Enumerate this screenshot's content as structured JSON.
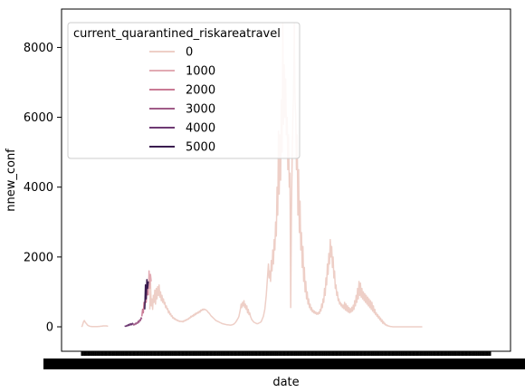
{
  "chart_data": {
    "type": "line",
    "xlabel": "date",
    "ylabel": "nnew_conf",
    "ylim": [
      -700,
      9100
    ],
    "y_ticks": [
      0,
      2000,
      4000,
      6000,
      8000
    ],
    "x_tick_labels_illegible": true,
    "x_count": 570,
    "grid": false,
    "legend": {
      "title": "current_quarantined_riskareatravel",
      "placement": "top-left",
      "entries": [
        "0",
        "1000",
        "2000",
        "3000",
        "4000",
        "5000"
      ]
    },
    "series_colors": {
      "0": "#eecfc7",
      "1000": "#e2aab3",
      "2000": "#c97a95",
      "3000": "#a05c88",
      "4000": "#6e3a73",
      "5000": "#3a1c4f"
    },
    "series": [
      {
        "name": "0",
        "segments": [
          {
            "x_start": 0,
            "values": [
              0,
              20,
              90,
              150,
              180,
              140,
              110,
              90,
              60,
              40,
              30,
              20,
              15,
              10,
              10,
              5,
              5,
              5,
              5,
              5,
              5,
              5,
              5,
              10,
              10,
              10,
              15,
              15,
              20,
              20,
              25,
              25,
              25,
              25,
              25,
              25,
              20,
              20
            ]
          },
          {
            "x_start": 95,
            "values": [
              500,
              1300,
              600,
              800,
              500,
              900,
              700,
              1050,
              650,
              1100,
              800,
              1150,
              900,
              1200,
              850,
              1000,
              750,
              900,
              700,
              800,
              650,
              700,
              550,
              600,
              500,
              520,
              400,
              450,
              350,
              380,
              300,
              320,
              250,
              270,
              220,
              240,
              200,
              210,
              180,
              190,
              160,
              170,
              150,
              160,
              150,
              160,
              140,
              170,
              160,
              190,
              180,
              210,
              200,
              230,
              220,
              260,
              250,
              300,
              280,
              320,
              300,
              350,
              320,
              380,
              350,
              400,
              380,
              420,
              400,
              450,
              420,
              480,
              460,
              500,
              480,
              510,
              490,
              500,
              480,
              470,
              450,
              420,
              400,
              380,
              350,
              320,
              300,
              280,
              260,
              240,
              220,
              200,
              180,
              170,
              160,
              150,
              140,
              130,
              120,
              110,
              100,
              90,
              85,
              80,
              75,
              70,
              65,
              60,
              60,
              55,
              55,
              50,
              50,
              50,
              55,
              60,
              70,
              80,
              100,
              120,
              150,
              180,
              220,
              250,
              300,
              400,
              500,
              650,
              550,
              700,
              600,
              750,
              550,
              650,
              500,
              600,
              400,
              500,
              350,
              400,
              300,
              250,
              200,
              180,
              150,
              130,
              120,
              110,
              100,
              90,
              90,
              100,
              110,
              120,
              130,
              150,
              200,
              250,
              300,
              400,
              500,
              700,
              900,
              1200,
              1500,
              1800,
              1400,
              1600,
              1300,
              1900,
              1600,
              2200,
              1800,
              2500,
              2200,
              3000,
              2600,
              4000,
              3200,
              5600,
              3800,
              5500,
              4200,
              6500,
              5000,
              8700,
              5800,
              7500,
              6000,
              7100,
              5500,
              6000,
              4500,
              5500,
              4000,
              4400,
              550,
              3300,
              4800,
              6000,
              6700,
              8700,
              6500,
              6000,
              4500,
              5500,
              3200,
              4500,
              2700,
              3600,
              2200,
              2700,
              1700,
              2300,
              1300,
              1700,
              1000,
              1300,
              800,
              1000,
              650,
              800,
              550,
              650,
              480,
              550,
              430,
              480,
              400,
              450,
              380,
              420,
              360,
              400,
              360,
              420,
              380,
              500,
              450,
              650,
              550,
              800,
              700,
              1100,
              900,
              1400,
              1200,
              1800,
              1500,
              2100,
              1800,
              2500,
              2000,
              2300,
              1700,
              2000,
              1400,
              1600,
              1100,
              1200,
              900,
              1000,
              750,
              800,
              650,
              700,
              600,
              650,
              550,
              620,
              520,
              700,
              480,
              650,
              450,
              600,
              420,
              550,
              400,
              520,
              420,
              560,
              450,
              620,
              500,
              750,
              600,
              900,
              700,
              1100,
              800,
              1300,
              900,
              1250,
              850,
              1100,
              800,
              1000,
              750,
              950,
              700,
              900,
              650,
              850,
              600,
              800,
              550,
              750,
              500,
              700,
              450,
              600,
              400,
              500,
              350,
              400,
              300,
              350,
              250,
              300,
              200,
              250,
              150,
              200,
              100,
              150,
              80,
              100,
              50,
              60,
              30,
              40,
              20,
              20,
              10,
              10,
              5,
              5,
              0,
              0,
              0,
              0,
              0,
              0,
              0,
              0,
              0,
              0,
              0,
              0,
              0,
              0,
              0,
              0,
              0,
              0,
              0,
              0,
              0,
              0,
              0,
              0,
              0,
              0,
              0,
              0,
              0,
              0,
              0,
              0,
              0,
              0,
              0,
              0,
              0,
              0,
              0,
              0,
              0,
              0
            ]
          }
        ]
      },
      {
        "name": "1000",
        "segments": [
          {
            "x_start": 93,
            "values": [
              900,
              1600,
              1100,
              1500,
              1300
            ]
          }
        ]
      },
      {
        "name": "2000",
        "segments": [
          {
            "x_start": 84,
            "values": [
              300,
              500,
              400,
              700,
              600,
              900,
              700,
              1200,
              900
            ]
          }
        ]
      },
      {
        "name": "3000",
        "segments": [
          {
            "x_start": 72,
            "values": [
              40,
              70,
              60,
              100,
              80,
              120,
              100,
              160,
              130,
              200,
              180,
              260,
              220
            ]
          }
        ]
      },
      {
        "name": "4000",
        "segments": [
          {
            "x_start": 60,
            "values": [
              10,
              20,
              15,
              40,
              25,
              60,
              40,
              80,
              50,
              90,
              60,
              100,
              80
            ]
          }
        ]
      },
      {
        "name": "5000",
        "segments": [
          {
            "x_start": 88,
            "values": [
              500,
              1200,
              800,
              1350,
              1100,
              1300
            ]
          }
        ]
      }
    ]
  }
}
